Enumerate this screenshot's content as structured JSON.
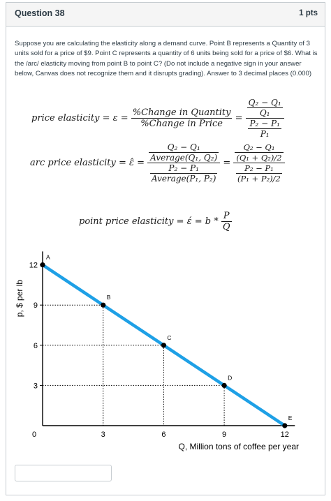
{
  "question": {
    "title": "Question 38",
    "points": "1 pts",
    "text": "Suppose you are calculating the elasticity along a demand curve. Point B represents a Quantity of 3 units sold for a price of $9. Point C represents a quantity of 6 units being sold for a price of $6. What is the /arc/ elasticity moving from point B to point C? (Do not include a negative sign in your answer below, Canvas does not recognize them and it disrupts grading). Answer to 3 decimal places (0.000)"
  },
  "formulas": {
    "price": {
      "lhs": "price elasticity = ε =",
      "num": "%Change in Quantity",
      "den": "%Change in Price",
      "eq": "=",
      "r_num_top": "Q₂ − Q₁",
      "r_num_bot": "Q₁",
      "r_den_top": "P₂ − P₁",
      "r_den_bot": "P₁"
    },
    "arc": {
      "lhs": "arc price elasticity = ε̂ =",
      "a_top": "Q₂ − Q₁",
      "a_bot": "Average(Q₁, Q₂)",
      "b_top": "P₂ − P₁",
      "b_bot": "Average(P₁, P₂)",
      "eq": "=",
      "c_top_top": "Q₂ − Q₁",
      "c_top_bot": "(Q₁ + Q₂)/2",
      "c_bot_top": "P₂ − P₁",
      "c_bot_bot": "(P₁ + P₂)/2"
    },
    "point": {
      "lhs": "point price elasticity = έ = b *",
      "num": "P",
      "den": "Q"
    }
  },
  "chart_data": {
    "type": "line",
    "xlabel": "Q, Million tons of coffee per year",
    "ylabel": "p, $ per lb",
    "x_ticks": [
      "0",
      "3",
      "6",
      "9",
      "12"
    ],
    "y_ticks": [
      "3",
      "6",
      "9",
      "12"
    ],
    "xlim": [
      0,
      12.5
    ],
    "ylim": [
      0,
      13
    ],
    "series": [
      {
        "values": [
          [
            0,
            12
          ],
          [
            3,
            9
          ],
          [
            6,
            6
          ],
          [
            9,
            3
          ],
          [
            12,
            0
          ]
        ],
        "color": "#1ea0e6"
      }
    ],
    "points": [
      {
        "label": "A",
        "x": 0,
        "y": 12
      },
      {
        "label": "B",
        "x": 3,
        "y": 9
      },
      {
        "label": "C",
        "x": 6,
        "y": 6
      },
      {
        "label": "D",
        "x": 9,
        "y": 3
      },
      {
        "label": "E",
        "x": 12,
        "y": 0
      }
    ]
  },
  "answer": {
    "value": ""
  }
}
